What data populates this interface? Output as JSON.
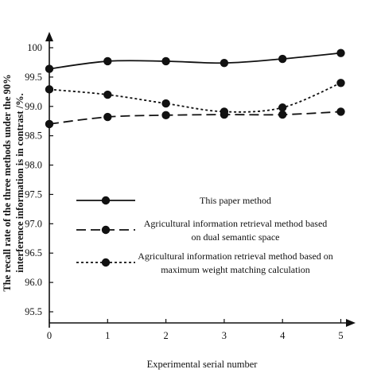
{
  "chart_data": {
    "type": "line",
    "title": "",
    "xlabel": "Experimental serial number",
    "ylabel_lines": [
      "The recall rate of the three methods under the 90%",
      "interference information is in contrast /%."
    ],
    "x": [
      0,
      1,
      2,
      3,
      4,
      5
    ],
    "xlim": [
      0,
      5.5
    ],
    "ylim": [
      95.5,
      100.3
    ],
    "yticks": [
      95.5,
      96.0,
      96.5,
      97.0,
      97.5,
      98.0,
      98.5,
      99.0,
      99.5,
      100
    ],
    "ytick_labels": [
      "95.5",
      "96.0",
      "96.5",
      "97.0",
      "97.5",
      "98.0",
      "98.5",
      "99.0",
      "99.5",
      "100"
    ],
    "xticks": [
      0,
      1,
      2,
      3,
      4,
      5
    ],
    "xtick_labels": [
      "0",
      "1",
      "2",
      "3",
      "4",
      "5"
    ],
    "grid": false,
    "legend_position": "lower-center inside plot",
    "series": [
      {
        "name": "This paper method",
        "style": "solid",
        "values": [
          99.64,
          99.77,
          99.77,
          99.74,
          99.81,
          99.91
        ]
      },
      {
        "name": "Agricultural information retrieval method based on dual semantic space",
        "style": "dashed",
        "values": [
          98.7,
          98.82,
          98.85,
          98.86,
          98.86,
          98.91
        ]
      },
      {
        "name": "Agricultural information retrieval method based on maximum weight matching calculation",
        "style": "dotted",
        "values": [
          99.29,
          99.2,
          99.05,
          98.91,
          98.98,
          99.4
        ]
      }
    ],
    "legend_lines": [
      [
        "This paper method"
      ],
      [
        "Agricultural information retrieval method based",
        "on dual semantic space"
      ],
      [
        "Agricultural information retrieval method based on",
        "maximum weight matching calculation"
      ]
    ],
    "colors": {
      "line": "#111111",
      "marker": "#111111",
      "axis": "#111111"
    }
  }
}
